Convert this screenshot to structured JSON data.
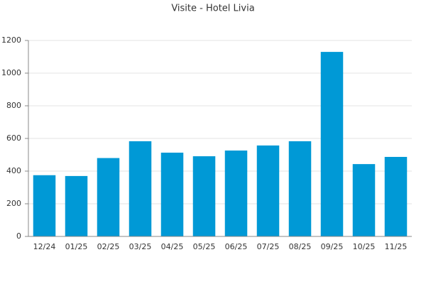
{
  "chart_data": {
    "type": "bar",
    "title": "Visite - Hotel Livia",
    "categories": [
      "12/24",
      "01/25",
      "02/25",
      "03/25",
      "04/25",
      "05/25",
      "06/25",
      "07/25",
      "08/25",
      "09/25",
      "10/25",
      "11/25"
    ],
    "values": [
      375,
      370,
      480,
      583,
      513,
      491,
      526,
      557,
      583,
      1130,
      443,
      487
    ],
    "color": "#0099d6",
    "ylim": [
      0,
      1200
    ],
    "yticks": [
      0,
      200,
      400,
      600,
      800,
      1000,
      1200
    ],
    "grid": true
  }
}
